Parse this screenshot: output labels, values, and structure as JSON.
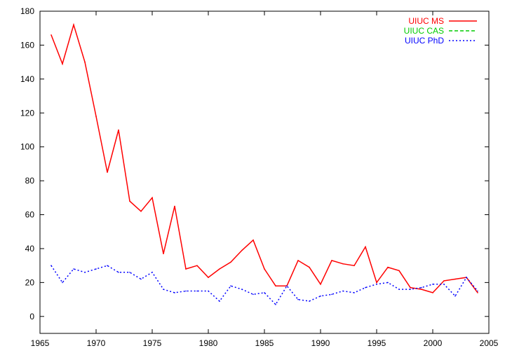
{
  "chart_data": {
    "type": "line",
    "title": "",
    "xlabel": "",
    "ylabel": "",
    "xlim": [
      1965,
      2005
    ],
    "ylim": [
      -10,
      180
    ],
    "xticks": [
      1965,
      1970,
      1975,
      1980,
      1985,
      1990,
      1995,
      2000,
      2005
    ],
    "yticks": [
      0,
      20,
      40,
      60,
      80,
      100,
      120,
      140,
      160,
      180
    ],
    "grid": false,
    "legend_position": "top-right",
    "series": [
      {
        "name": "UIUC MS",
        "color": "#ff0000",
        "dash": "solid",
        "x": [
          1966,
          1967,
          1968,
          1969,
          1970,
          1971,
          1972,
          1973,
          1974,
          1975,
          1976,
          1977,
          1978,
          1979,
          1980,
          1981,
          1982,
          1983,
          1984,
          1985,
          1986,
          1987,
          1988,
          1989,
          1990,
          1991,
          1992,
          1993,
          1994,
          1995,
          1996,
          1997,
          1998,
          1999,
          2000,
          2001,
          2002,
          2003,
          2004
        ],
        "values": [
          166,
          149,
          172,
          150,
          118,
          85,
          110,
          68,
          62,
          70,
          37,
          65,
          28,
          30,
          23,
          28,
          32,
          39,
          45,
          28,
          18,
          18,
          33,
          29,
          19,
          33,
          31,
          30,
          41,
          20,
          29,
          27,
          17,
          16,
          14,
          21,
          22,
          23,
          14
        ]
      },
      {
        "name": "UIUC CAS",
        "color": "#00cc00",
        "dash": "dashed",
        "x": [],
        "values": []
      },
      {
        "name": "UIUC PhD",
        "color": "#0000ff",
        "dash": "dotted",
        "x": [
          1966,
          1967,
          1968,
          1969,
          1970,
          1971,
          1972,
          1973,
          1974,
          1975,
          1976,
          1977,
          1978,
          1979,
          1980,
          1981,
          1982,
          1983,
          1984,
          1985,
          1986,
          1987,
          1988,
          1989,
          1990,
          1991,
          1992,
          1993,
          1994,
          1995,
          1996,
          1997,
          1998,
          1999,
          2000,
          2001,
          2002,
          2003,
          2004
        ],
        "values": [
          30,
          20,
          28,
          26,
          28,
          30,
          26,
          26,
          22,
          26,
          16,
          14,
          15,
          15,
          15,
          9,
          18,
          16,
          13,
          14,
          7,
          18,
          10,
          9,
          12,
          13,
          15,
          14,
          17,
          19,
          20,
          16,
          16,
          17,
          19,
          19,
          12,
          23,
          15
        ]
      }
    ]
  }
}
